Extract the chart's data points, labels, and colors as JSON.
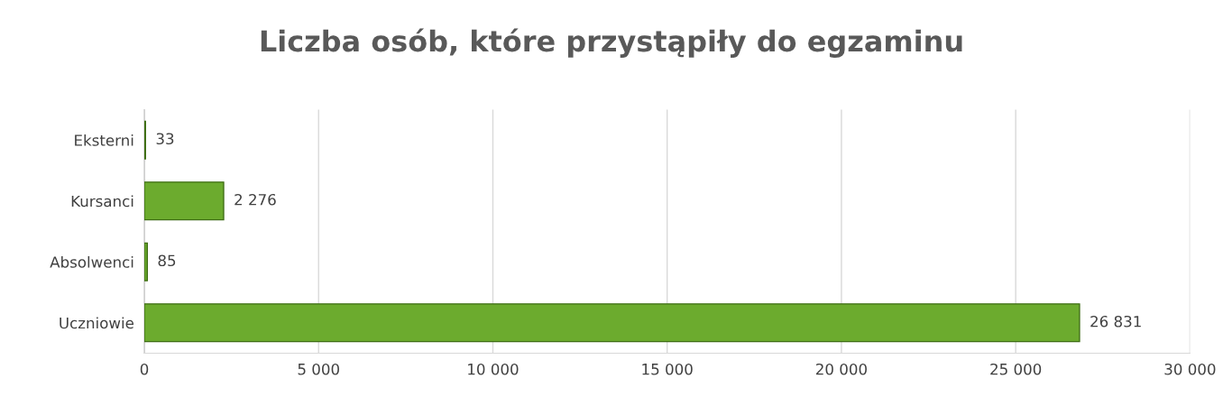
{
  "chart_data": {
    "type": "bar",
    "orientation": "horizontal",
    "title": "Liczba osób, które przystąpiły do egzaminu",
    "categories": [
      "Eksterni",
      "Kursanci",
      "Absolwenci",
      "Uczniowie"
    ],
    "values": [
      33,
      2276,
      85,
      26831
    ],
    "value_labels": [
      "33",
      "2 276",
      "85",
      "26 831"
    ],
    "color": "#6cab2e",
    "xlim": [
      0,
      30000
    ],
    "xticks": [
      0,
      {
        "value": 5000,
        "label": "5 000"
      },
      {
        "value": 10000,
        "label": "10 000"
      },
      {
        "value": 15000,
        "label": "15 000"
      },
      {
        "value": 20000,
        "label": "20 000"
      },
      {
        "value": 25000,
        "label": "25 000"
      },
      {
        "value": 30000,
        "label": "30 000"
      }
    ],
    "grid": "x",
    "legend": false
  }
}
